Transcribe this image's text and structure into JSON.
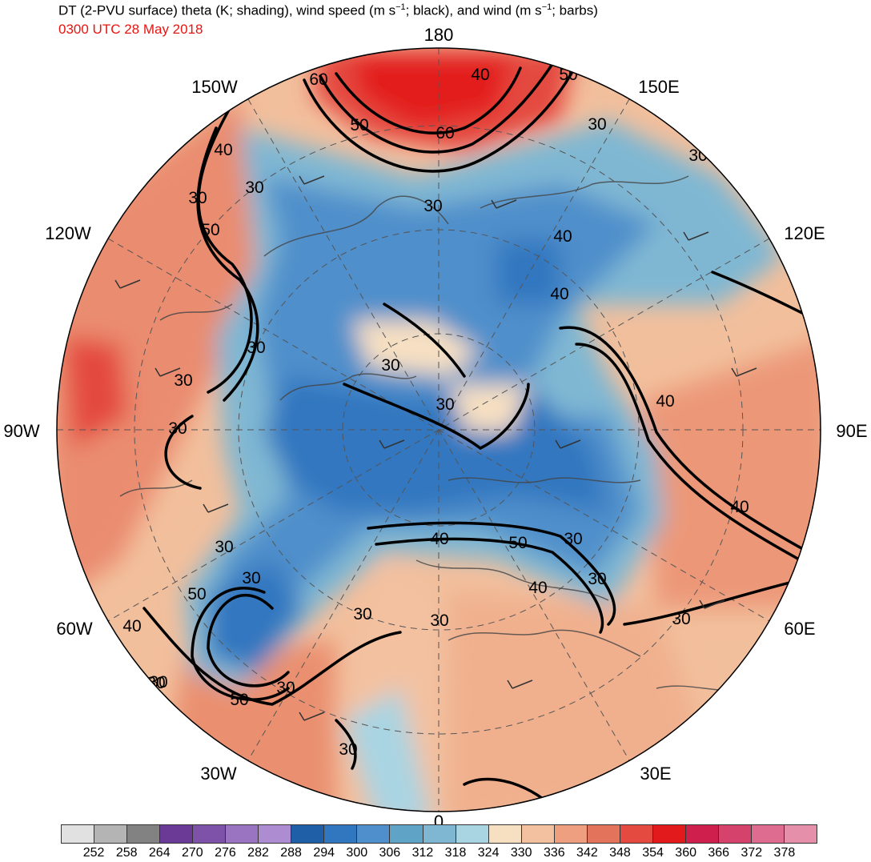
{
  "title": {
    "part1": "DT (2-PVU surface) theta (K; shading), wind speed (m s",
    "sup1": "−1",
    "part2": "; black), and wind (m s",
    "sup2": "−1",
    "part3": "; barbs)"
  },
  "subtitle": "0300 UTC 28 May 2018",
  "longitude_labels": [
    "180",
    "150E",
    "120E",
    "90E",
    "60E",
    "30E",
    "0",
    "30W",
    "60W",
    "90W",
    "120W",
    "150W"
  ],
  "contour_labels": [
    "60",
    "40",
    "50",
    "50",
    "60",
    "30",
    "30",
    "30",
    "40",
    "30",
    "50",
    "30",
    "40",
    "40",
    "30",
    "30",
    "30",
    "30",
    "30",
    "40",
    "40",
    "30",
    "30",
    "30",
    "40",
    "50",
    "30",
    "40",
    "30",
    "30",
    "30",
    "30",
    "50",
    "50",
    "30",
    "30",
    "40",
    "30"
  ],
  "colorbar": {
    "colors": [
      "#e1e1e1",
      "#b4b4b4",
      "#828282",
      "#6a3a96",
      "#7e52a8",
      "#9a74c0",
      "#ae8cd2",
      "#1f5fa8",
      "#3077c0",
      "#4f8fcb",
      "#5fa3c6",
      "#7fb7d3",
      "#a9d4e2",
      "#f7e0c2",
      "#f3c1a0",
      "#ed9f7f",
      "#e4735c",
      "#e44a3f",
      "#e31a1c",
      "#cf1f4c",
      "#d5436d",
      "#de6b90",
      "#e68fab"
    ],
    "ticks": [
      "252",
      "258",
      "264",
      "270",
      "276",
      "282",
      "288",
      "294",
      "300",
      "306",
      "312",
      "318",
      "324",
      "330",
      "336",
      "342",
      "348",
      "354",
      "360",
      "366",
      "372",
      "378"
    ]
  }
}
